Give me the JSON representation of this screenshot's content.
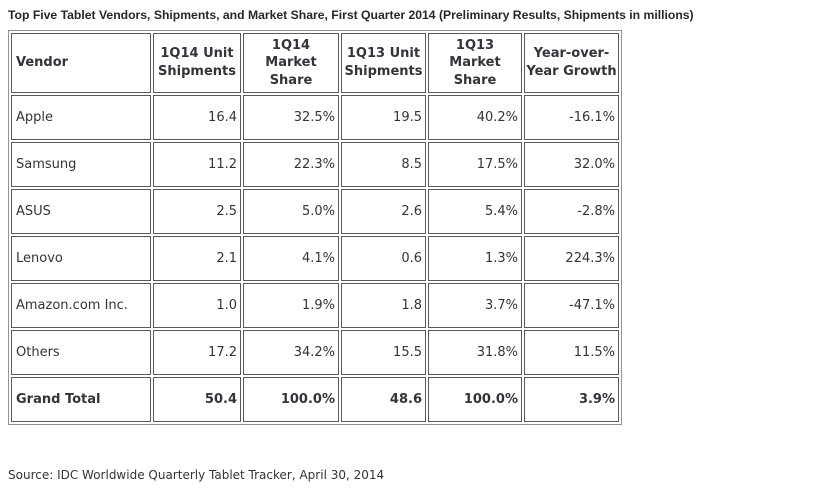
{
  "page": {
    "title": "Top Five Tablet Vendors, Shipments, and Market Share, First Quarter 2014 (Preliminary Results, Shipments in millions)",
    "source_note": "Source: IDC Worldwide Quarterly Tablet Tracker, April 30, 2014",
    "background_color": "#ffffff",
    "text_color": "#33333b",
    "table_outer_border_color": "#919191",
    "cell_border_color": "#5a5a5a"
  },
  "table": {
    "columns": [
      "Vendor",
      "1Q14 Unit Shipments",
      "1Q14 Market Share",
      "1Q13 Unit Shipments",
      "1Q13 Market Share",
      "Year-over-Year Growth"
    ],
    "rows": [
      [
        "Apple",
        "16.4",
        "32.5%",
        "19.5",
        "40.2%",
        "-16.1%"
      ],
      [
        "Samsung",
        "11.2",
        "22.3%",
        "8.5",
        "17.5%",
        "32.0%"
      ],
      [
        "ASUS",
        "2.5",
        "5.0%",
        "2.6",
        "5.4%",
        "-2.8%"
      ],
      [
        "Lenovo",
        "2.1",
        "4.1%",
        "0.6",
        "1.3%",
        "224.3%"
      ],
      [
        "Amazon.com Inc.",
        "1.0",
        "1.9%",
        "1.8",
        "3.7%",
        "-47.1%"
      ],
      [
        "Others",
        "17.2",
        "34.2%",
        "15.5",
        "31.8%",
        "11.5%"
      ]
    ],
    "total": [
      "Grand Total",
      "50.4",
      "100.0%",
      "48.6",
      "100.0%",
      "3.9%"
    ]
  },
  "chart_data": {
    "type": "table",
    "title": "Top Five Tablet Vendors, Shipments, and Market Share, First Quarter 2014 (Preliminary Results, Shipments in millions)",
    "categories": [
      "Apple",
      "Samsung",
      "ASUS",
      "Lenovo",
      "Amazon.com Inc.",
      "Others",
      "Grand Total"
    ],
    "series": [
      {
        "name": "1Q14 Unit Shipments",
        "values": [
          16.4,
          11.2,
          2.5,
          2.1,
          1.0,
          17.2,
          50.4
        ]
      },
      {
        "name": "1Q14 Market Share (%)",
        "values": [
          32.5,
          22.3,
          5.0,
          4.1,
          1.9,
          34.2,
          100.0
        ]
      },
      {
        "name": "1Q13 Unit Shipments",
        "values": [
          19.5,
          8.5,
          2.6,
          0.6,
          1.8,
          15.5,
          48.6
        ]
      },
      {
        "name": "1Q13 Market Share (%)",
        "values": [
          40.2,
          17.5,
          5.4,
          1.3,
          3.7,
          31.8,
          100.0
        ]
      },
      {
        "name": "Year-over-Year Growth (%)",
        "values": [
          -16.1,
          32.0,
          -2.8,
          224.3,
          -47.1,
          11.5,
          3.9
        ]
      }
    ],
    "annotations": [
      "Source: IDC Worldwide Quarterly Tablet Tracker, April 30, 2014"
    ]
  }
}
